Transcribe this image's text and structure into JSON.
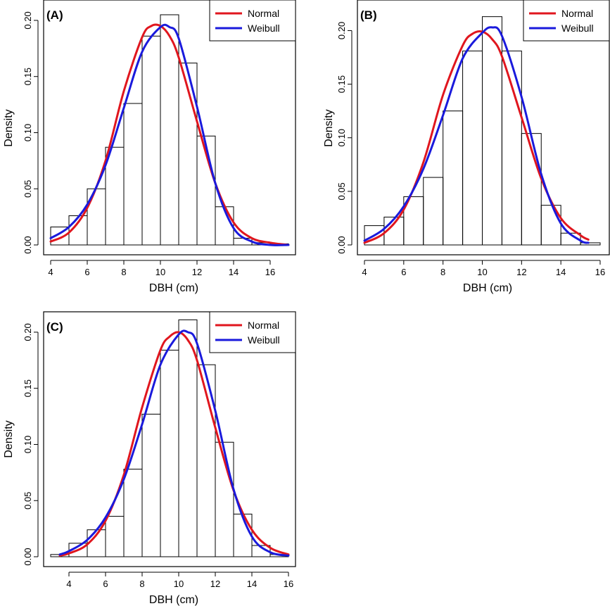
{
  "figure": {
    "colors": {
      "normal": "#e0161e",
      "weibull": "#1a1adc",
      "bars": "#000000"
    }
  },
  "chart_data": [
    {
      "type": "bar",
      "panel_label": "(A)",
      "xlabel": "DBH (cm)",
      "ylabel": "Density",
      "xlim": [
        4,
        17
      ],
      "ylim": [
        0,
        0.21
      ],
      "xticks": [
        "4",
        "6",
        "8",
        "10",
        "12",
        "14",
        "16"
      ],
      "yticks": [
        "0.00",
        "0.05",
        "0.10",
        "0.15",
        "0.20"
      ],
      "bins": [
        [
          4,
          5
        ],
        [
          5,
          6
        ],
        [
          6,
          7
        ],
        [
          7,
          8
        ],
        [
          8,
          9
        ],
        [
          9,
          10
        ],
        [
          10,
          11
        ],
        [
          11,
          12
        ],
        [
          12,
          13
        ],
        [
          13,
          14
        ],
        [
          14,
          15
        ],
        [
          15,
          16
        ],
        [
          16,
          17
        ]
      ],
      "values": [
        0.016,
        0.026,
        0.05,
        0.087,
        0.126,
        0.186,
        0.205,
        0.162,
        0.097,
        0.034,
        0.006,
        0.002,
        0.001
      ],
      "legend": {
        "position": "top-right",
        "entries": [
          "Normal",
          "Weibull"
        ]
      },
      "series": [
        {
          "name": "Normal",
          "type": "line",
          "color": "#e0161e",
          "x": [
            4.0,
            5.0,
            6.0,
            7.0,
            8.0,
            9.0,
            9.5,
            10.0,
            10.5,
            11.0,
            12.0,
            13.0,
            14.0,
            15.0,
            16.0,
            17.0
          ],
          "y": [
            0.003,
            0.011,
            0.033,
            0.075,
            0.137,
            0.185,
            0.195,
            0.195,
            0.186,
            0.167,
            0.11,
            0.055,
            0.02,
            0.006,
            0.002,
            0.0
          ]
        },
        {
          "name": "Weibull",
          "type": "line",
          "color": "#1a1adc",
          "x": [
            4.0,
            5.0,
            6.0,
            7.0,
            8.0,
            9.0,
            10.0,
            10.5,
            11.0,
            12.0,
            13.0,
            14.0,
            15.0,
            16.0,
            17.0
          ],
          "y": [
            0.006,
            0.016,
            0.036,
            0.071,
            0.122,
            0.172,
            0.194,
            0.194,
            0.184,
            0.123,
            0.055,
            0.015,
            0.003,
            0.0,
            0.0
          ]
        }
      ]
    },
    {
      "type": "bar",
      "panel_label": "(B)",
      "xlabel": "DBH (cm)",
      "ylabel": "Density",
      "xlim": [
        4,
        16
      ],
      "ylim": [
        0,
        0.22
      ],
      "xticks": [
        "4",
        "6",
        "8",
        "10",
        "12",
        "14",
        "16"
      ],
      "yticks": [
        "0.00",
        "0.05",
        "0.10",
        "0.15",
        "0.20"
      ],
      "bins": [
        [
          4,
          5
        ],
        [
          5,
          6
        ],
        [
          6,
          7
        ],
        [
          7,
          8
        ],
        [
          8,
          9
        ],
        [
          9,
          10
        ],
        [
          10,
          11
        ],
        [
          11,
          12
        ],
        [
          12,
          13
        ],
        [
          13,
          14
        ],
        [
          14,
          15
        ],
        [
          15,
          16
        ]
      ],
      "values": [
        0.018,
        0.026,
        0.045,
        0.063,
        0.125,
        0.181,
        0.213,
        0.181,
        0.104,
        0.037,
        0.011,
        0.002
      ],
      "legend": {
        "position": "top-right",
        "entries": [
          "Normal",
          "Weibull"
        ]
      },
      "series": [
        {
          "name": "Normal",
          "type": "line",
          "color": "#e0161e",
          "x": [
            4.0,
            5.0,
            6.0,
            7.0,
            8.0,
            9.0,
            9.5,
            10.0,
            10.5,
            11.0,
            12.0,
            13.0,
            14.0,
            15.0,
            15.4
          ],
          "y": [
            0.002,
            0.011,
            0.033,
            0.077,
            0.14,
            0.186,
            0.197,
            0.199,
            0.192,
            0.176,
            0.119,
            0.062,
            0.025,
            0.009,
            0.005
          ]
        },
        {
          "name": "Weibull",
          "type": "line",
          "color": "#1a1adc",
          "x": [
            4.0,
            5.0,
            6.0,
            7.0,
            8.0,
            9.0,
            10.0,
            10.5,
            11.0,
            12.0,
            13.0,
            14.0,
            15.0,
            15.4
          ],
          "y": [
            0.004,
            0.015,
            0.036,
            0.071,
            0.121,
            0.174,
            0.198,
            0.203,
            0.195,
            0.138,
            0.066,
            0.02,
            0.004,
            0.002
          ]
        }
      ]
    },
    {
      "type": "bar",
      "panel_label": "(C)",
      "xlabel": "DBH (cm)",
      "ylabel": "Density",
      "xlim": [
        3,
        16
      ],
      "ylim": [
        0,
        0.21
      ],
      "xticks": [
        "4",
        "6",
        "8",
        "10",
        "12",
        "14",
        "16"
      ],
      "yticks": [
        "0.00",
        "0.05",
        "0.10",
        "0.15",
        "0.20"
      ],
      "bins": [
        [
          3,
          4
        ],
        [
          4,
          5
        ],
        [
          5,
          6
        ],
        [
          6,
          7
        ],
        [
          7,
          8
        ],
        [
          8,
          9
        ],
        [
          9,
          10
        ],
        [
          10,
          11
        ],
        [
          11,
          12
        ],
        [
          12,
          13
        ],
        [
          13,
          14
        ],
        [
          14,
          15
        ],
        [
          15,
          16
        ]
      ],
      "values": [
        0.002,
        0.012,
        0.024,
        0.036,
        0.078,
        0.127,
        0.184,
        0.211,
        0.171,
        0.102,
        0.038,
        0.01,
        0.002
      ],
      "legend": {
        "position": "top-right",
        "entries": [
          "Normal",
          "Weibull"
        ]
      },
      "series": [
        {
          "name": "Normal",
          "type": "line",
          "color": "#e0161e",
          "x": [
            3.5,
            4.0,
            5.0,
            6.0,
            7.0,
            8.0,
            9.0,
            9.5,
            10.0,
            10.5,
            11.0,
            12.0,
            13.0,
            14.0,
            15.0,
            16.0
          ],
          "y": [
            0.001,
            0.003,
            0.011,
            0.032,
            0.073,
            0.133,
            0.184,
            0.196,
            0.2,
            0.193,
            0.175,
            0.115,
            0.059,
            0.024,
            0.008,
            0.002
          ]
        },
        {
          "name": "Weibull",
          "type": "line",
          "color": "#1a1adc",
          "x": [
            3.5,
            4.0,
            5.0,
            6.0,
            7.0,
            8.0,
            9.0,
            10.0,
            10.5,
            11.0,
            12.0,
            13.0,
            14.0,
            15.0,
            16.0
          ],
          "y": [
            0.002,
            0.005,
            0.015,
            0.035,
            0.069,
            0.118,
            0.171,
            0.198,
            0.2,
            0.19,
            0.13,
            0.06,
            0.018,
            0.004,
            0.001
          ]
        }
      ]
    }
  ]
}
